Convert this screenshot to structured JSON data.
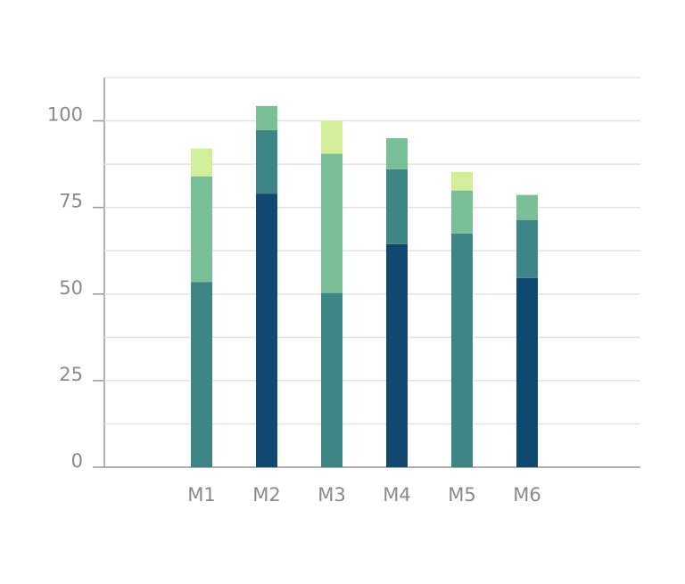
{
  "chart_data": {
    "type": "stacked_bar",
    "categories": [
      "M1",
      "M2",
      "M3",
      "M4",
      "M5",
      "M6"
    ],
    "series": [
      {
        "color": "#10496f",
        "values": [
          null,
          79,
          null,
          64.4,
          null,
          54.6
        ]
      },
      {
        "color": "#3e8686",
        "values": [
          53.5,
          18.3,
          50.3,
          21.6,
          67.5,
          16.8
        ]
      },
      {
        "color": "#7bbf98",
        "values": [
          30.5,
          7,
          40.2,
          9,
          12.4,
          7.2
        ]
      },
      {
        "color": "#d3ee9b",
        "values": [
          8,
          null,
          9.5,
          null,
          5.4,
          null
        ]
      }
    ],
    "ylim": [
      0,
      112.5
    ],
    "yticks": [
      0,
      25,
      50,
      75,
      100
    ],
    "minor_yticks": [
      12.5,
      37.5,
      62.5,
      87.5,
      112.5
    ],
    "grid": true
  }
}
